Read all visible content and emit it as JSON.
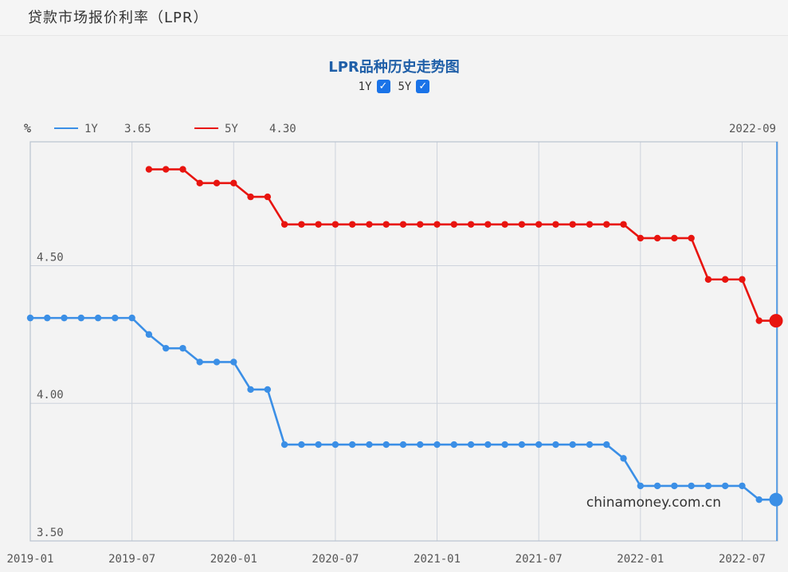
{
  "page": {
    "title": "贷款市场报价利率（LPR）"
  },
  "chart": {
    "title": "LPR品种历史走势图",
    "toggles": [
      {
        "label": "1Y",
        "checked": true
      },
      {
        "label": "5Y",
        "checked": true
      }
    ],
    "unit": "%",
    "current_date": "2022-09",
    "legend": [
      {
        "label": "1Y",
        "value": "3.65",
        "color": "#3b8fe6"
      },
      {
        "label": "5Y",
        "value": "4.30",
        "color": "#e8140f"
      }
    ],
    "watermark": "chinamoney.com.cn"
  },
  "chart_data": {
    "type": "line",
    "ylim": [
      3.5,
      4.95
    ],
    "yticks": [
      "3.50",
      "4.00",
      "4.50"
    ],
    "xticks": [
      "2019-01",
      "2019-07",
      "2020-01",
      "2020-07",
      "2021-01",
      "2021-07",
      "2022-01",
      "2022-07"
    ],
    "x_start": "2019-01",
    "x_end": "2022-09",
    "grid": true,
    "series": [
      {
        "name": "1Y",
        "color": "#3b8fe6",
        "x": [
          "2019-01",
          "2019-02",
          "2019-03",
          "2019-04",
          "2019-05",
          "2019-06",
          "2019-07",
          "2019-08",
          "2019-09",
          "2019-10",
          "2019-11",
          "2019-12",
          "2020-01",
          "2020-02",
          "2020-03",
          "2020-04",
          "2020-05",
          "2020-06",
          "2020-07",
          "2020-08",
          "2020-09",
          "2020-10",
          "2020-11",
          "2020-12",
          "2021-01",
          "2021-02",
          "2021-03",
          "2021-04",
          "2021-05",
          "2021-06",
          "2021-07",
          "2021-08",
          "2021-09",
          "2021-10",
          "2021-11",
          "2021-12",
          "2022-01",
          "2022-02",
          "2022-03",
          "2022-04",
          "2022-05",
          "2022-06",
          "2022-07",
          "2022-08",
          "2022-09"
        ],
        "values": [
          4.31,
          4.31,
          4.31,
          4.31,
          4.31,
          4.31,
          4.31,
          4.25,
          4.2,
          4.2,
          4.15,
          4.15,
          4.15,
          4.05,
          4.05,
          3.85,
          3.85,
          3.85,
          3.85,
          3.85,
          3.85,
          3.85,
          3.85,
          3.85,
          3.85,
          3.85,
          3.85,
          3.85,
          3.85,
          3.85,
          3.85,
          3.85,
          3.85,
          3.85,
          3.85,
          3.8,
          3.7,
          3.7,
          3.7,
          3.7,
          3.7,
          3.7,
          3.7,
          3.65,
          3.65
        ]
      },
      {
        "name": "5Y",
        "color": "#e8140f",
        "x": [
          "2019-08",
          "2019-09",
          "2019-10",
          "2019-11",
          "2019-12",
          "2020-01",
          "2020-02",
          "2020-03",
          "2020-04",
          "2020-05",
          "2020-06",
          "2020-07",
          "2020-08",
          "2020-09",
          "2020-10",
          "2020-11",
          "2020-12",
          "2021-01",
          "2021-02",
          "2021-03",
          "2021-04",
          "2021-05",
          "2021-06",
          "2021-07",
          "2021-08",
          "2021-09",
          "2021-10",
          "2021-11",
          "2021-12",
          "2022-01",
          "2022-02",
          "2022-03",
          "2022-04",
          "2022-05",
          "2022-06",
          "2022-07",
          "2022-08",
          "2022-09"
        ],
        "values": [
          4.85,
          4.85,
          4.85,
          4.8,
          4.8,
          4.8,
          4.75,
          4.75,
          4.65,
          4.65,
          4.65,
          4.65,
          4.65,
          4.65,
          4.65,
          4.65,
          4.65,
          4.65,
          4.65,
          4.65,
          4.65,
          4.65,
          4.65,
          4.65,
          4.65,
          4.65,
          4.65,
          4.65,
          4.65,
          4.6,
          4.6,
          4.6,
          4.6,
          4.45,
          4.45,
          4.45,
          4.3,
          4.3
        ]
      }
    ]
  }
}
